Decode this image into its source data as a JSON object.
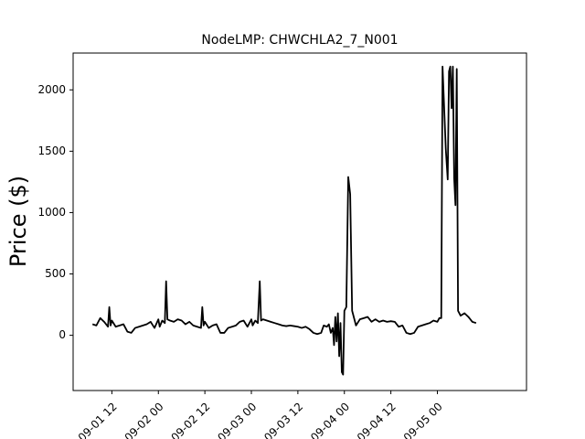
{
  "chart_data": {
    "type": "line",
    "title": "NodeLMP: CHWCHLA2_7_N001",
    "xlabel": "",
    "ylabel": "Price ($)",
    "ylim": [
      -450,
      2300
    ],
    "xlim": [
      "2020-09-01 02:00",
      "2020-09-05 23:00"
    ],
    "grid": false,
    "legend": "none",
    "line_color": "#000000",
    "x_ticks": [
      {
        "x": "2020-09-01 12:00",
        "label": "09-01 12"
      },
      {
        "x": "2020-09-02 00:00",
        "label": "09-02 00"
      },
      {
        "x": "2020-09-02 12:00",
        "label": "09-02 12"
      },
      {
        "x": "2020-09-03 00:00",
        "label": "09-03 00"
      },
      {
        "x": "2020-09-03 12:00",
        "label": "09-03 12"
      },
      {
        "x": "2020-09-04 00:00",
        "label": "09-04 00"
      },
      {
        "x": "2020-09-04 12:00",
        "label": "09-04 12"
      },
      {
        "x": "2020-09-05 00:00",
        "label": "09-05 00"
      }
    ],
    "y_ticks": [
      {
        "y": 0,
        "label": "0"
      },
      {
        "y": 500,
        "label": "500"
      },
      {
        "y": 1000,
        "label": "1000"
      },
      {
        "y": 1500,
        "label": "1500"
      },
      {
        "y": 2000,
        "label": "2000"
      }
    ],
    "series": [
      {
        "name": "",
        "points": [
          [
            "2020-09-01 07:00",
            90
          ],
          [
            "2020-09-01 08:00",
            80
          ],
          [
            "2020-09-01 09:00",
            140
          ],
          [
            "2020-09-01 10:00",
            110
          ],
          [
            "2020-09-01 11:00",
            70
          ],
          [
            "2020-09-01 11:20",
            230
          ],
          [
            "2020-09-01 11:40",
            80
          ],
          [
            "2020-09-01 12:00",
            120
          ],
          [
            "2020-09-01 13:00",
            70
          ],
          [
            "2020-09-01 14:00",
            80
          ],
          [
            "2020-09-01 15:00",
            90
          ],
          [
            "2020-09-01 16:00",
            30
          ],
          [
            "2020-09-01 17:00",
            20
          ],
          [
            "2020-09-01 18:00",
            60
          ],
          [
            "2020-09-01 19:00",
            70
          ],
          [
            "2020-09-01 20:00",
            80
          ],
          [
            "2020-09-01 21:00",
            90
          ],
          [
            "2020-09-01 22:00",
            110
          ],
          [
            "2020-09-01 23:00",
            60
          ],
          [
            "2020-09-02 00:00",
            130
          ],
          [
            "2020-09-02 00:20",
            70
          ],
          [
            "2020-09-02 01:00",
            120
          ],
          [
            "2020-09-02 01:40",
            100
          ],
          [
            "2020-09-02 02:00",
            440
          ],
          [
            "2020-09-02 02:20",
            130
          ],
          [
            "2020-09-02 03:00",
            120
          ],
          [
            "2020-09-02 04:00",
            110
          ],
          [
            "2020-09-02 05:00",
            130
          ],
          [
            "2020-09-02 06:00",
            120
          ],
          [
            "2020-09-02 07:00",
            90
          ],
          [
            "2020-09-02 08:00",
            110
          ],
          [
            "2020-09-02 09:00",
            80
          ],
          [
            "2020-09-02 10:00",
            70
          ],
          [
            "2020-09-02 11:00",
            60
          ],
          [
            "2020-09-02 11:20",
            230
          ],
          [
            "2020-09-02 11:40",
            80
          ],
          [
            "2020-09-02 12:00",
            110
          ],
          [
            "2020-09-02 13:00",
            60
          ],
          [
            "2020-09-02 14:00",
            80
          ],
          [
            "2020-09-02 15:00",
            90
          ],
          [
            "2020-09-02 16:00",
            20
          ],
          [
            "2020-09-02 17:00",
            20
          ],
          [
            "2020-09-02 18:00",
            60
          ],
          [
            "2020-09-02 19:00",
            70
          ],
          [
            "2020-09-02 20:00",
            80
          ],
          [
            "2020-09-02 21:00",
            110
          ],
          [
            "2020-09-02 22:00",
            120
          ],
          [
            "2020-09-02 23:00",
            70
          ],
          [
            "2020-09-03 00:00",
            130
          ],
          [
            "2020-09-03 00:20",
            80
          ],
          [
            "2020-09-03 01:00",
            120
          ],
          [
            "2020-09-03 01:40",
            100
          ],
          [
            "2020-09-03 02:10",
            440
          ],
          [
            "2020-09-03 02:30",
            120
          ],
          [
            "2020-09-03 03:00",
            130
          ],
          [
            "2020-09-03 04:00",
            120
          ],
          [
            "2020-09-03 05:00",
            110
          ],
          [
            "2020-09-03 06:00",
            100
          ],
          [
            "2020-09-03 07:00",
            90
          ],
          [
            "2020-09-03 08:00",
            80
          ],
          [
            "2020-09-03 09:00",
            75
          ],
          [
            "2020-09-03 10:00",
            80
          ],
          [
            "2020-09-03 11:00",
            75
          ],
          [
            "2020-09-03 12:00",
            70
          ],
          [
            "2020-09-03 13:00",
            60
          ],
          [
            "2020-09-03 14:00",
            70
          ],
          [
            "2020-09-03 15:00",
            50
          ],
          [
            "2020-09-03 16:00",
            20
          ],
          [
            "2020-09-03 17:00",
            10
          ],
          [
            "2020-09-03 18:00",
            20
          ],
          [
            "2020-09-03 18:40",
            80
          ],
          [
            "2020-09-03 19:30",
            70
          ],
          [
            "2020-09-03 20:00",
            90
          ],
          [
            "2020-09-03 20:30",
            20
          ],
          [
            "2020-09-03 21:00",
            60
          ],
          [
            "2020-09-03 21:20",
            -80
          ],
          [
            "2020-09-03 21:40",
            150
          ],
          [
            "2020-09-03 22:00",
            -50
          ],
          [
            "2020-09-03 22:20",
            180
          ],
          [
            "2020-09-03 22:40",
            -170
          ],
          [
            "2020-09-03 23:00",
            100
          ],
          [
            "2020-09-03 23:20",
            -300
          ],
          [
            "2020-09-03 23:40",
            -320
          ],
          [
            "2020-09-04 00:00",
            200
          ],
          [
            "2020-09-04 00:30",
            230
          ],
          [
            "2020-09-04 01:00",
            1290
          ],
          [
            "2020-09-04 01:30",
            1150
          ],
          [
            "2020-09-04 02:00",
            200
          ],
          [
            "2020-09-04 03:00",
            80
          ],
          [
            "2020-09-04 04:00",
            130
          ],
          [
            "2020-09-04 05:00",
            140
          ],
          [
            "2020-09-04 06:00",
            150
          ],
          [
            "2020-09-04 07:00",
            110
          ],
          [
            "2020-09-04 08:00",
            130
          ],
          [
            "2020-09-04 09:00",
            110
          ],
          [
            "2020-09-04 10:00",
            120
          ],
          [
            "2020-09-04 11:00",
            110
          ],
          [
            "2020-09-04 12:00",
            115
          ],
          [
            "2020-09-04 13:00",
            110
          ],
          [
            "2020-09-04 14:00",
            70
          ],
          [
            "2020-09-04 15:00",
            80
          ],
          [
            "2020-09-04 16:00",
            20
          ],
          [
            "2020-09-04 17:00",
            10
          ],
          [
            "2020-09-04 18:00",
            20
          ],
          [
            "2020-09-04 19:00",
            70
          ],
          [
            "2020-09-04 20:00",
            80
          ],
          [
            "2020-09-04 21:00",
            90
          ],
          [
            "2020-09-04 22:00",
            100
          ],
          [
            "2020-09-04 23:00",
            120
          ],
          [
            "2020-09-05 00:00",
            110
          ],
          [
            "2020-09-05 00:30",
            140
          ],
          [
            "2020-09-05 01:00",
            140
          ],
          [
            "2020-09-05 01:20",
            2190
          ],
          [
            "2020-09-05 02:10",
            1520
          ],
          [
            "2020-09-05 02:40",
            1270
          ],
          [
            "2020-09-05 03:00",
            2150
          ],
          [
            "2020-09-05 03:20",
            2190
          ],
          [
            "2020-09-05 03:40",
            1850
          ],
          [
            "2020-09-05 04:00",
            2190
          ],
          [
            "2020-09-05 04:20",
            1280
          ],
          [
            "2020-09-05 04:40",
            1060
          ],
          [
            "2020-09-05 05:00",
            2170
          ],
          [
            "2020-09-05 05:20",
            200
          ],
          [
            "2020-09-05 06:00",
            160
          ],
          [
            "2020-09-05 07:00",
            180
          ],
          [
            "2020-09-05 08:00",
            150
          ],
          [
            "2020-09-05 09:00",
            110
          ],
          [
            "2020-09-05 10:00",
            100
          ]
        ]
      }
    ]
  }
}
